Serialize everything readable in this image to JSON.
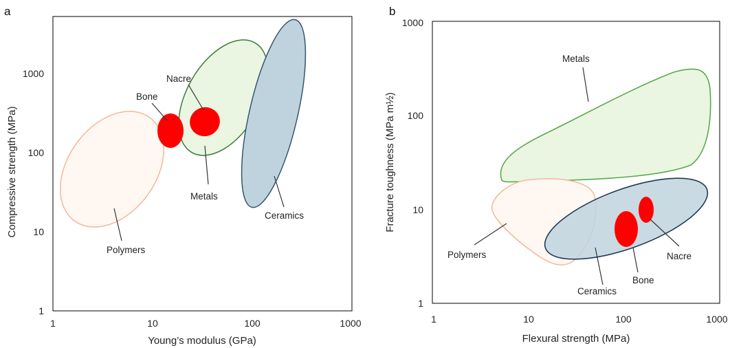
{
  "chart_data": [
    {
      "type": "scatter",
      "panel": "a",
      "xlabel": "Young’s modulus (GPa)",
      "ylabel": "Compressive strength (MPa)",
      "xscale": "log",
      "yscale": "log",
      "xlim": [
        1,
        1000
      ],
      "ylim": [
        1,
        5000
      ],
      "xticks": [
        "1",
        "10",
        "100",
        "1000"
      ],
      "yticks": [
        "1",
        "10",
        "100",
        "1000"
      ],
      "grid": false,
      "regions": [
        {
          "name": "Polymers",
          "x_range": [
            1.2,
            15
          ],
          "y_range": [
            12,
            320
          ],
          "fill": "#fff7f2",
          "stroke": "#f4b79b",
          "tilt": 42
        },
        {
          "name": "Metals",
          "x_range": [
            20,
            150
          ],
          "y_range": [
            38,
            2700
          ],
          "fill": "#eaf6e2",
          "stroke": "#4a8a45",
          "tilt": 48
        },
        {
          "name": "Ceramics",
          "x_range": [
            70,
            650
          ],
          "y_range": [
            20,
            4500
          ],
          "fill": "#bfd3de",
          "stroke": "#3f6174",
          "tilt": 75
        },
        {
          "name": "Bone",
          "x_range": [
            12,
            20
          ],
          "y_range": [
            100,
            300
          ],
          "fill": "#ff0000",
          "stroke": "#ff0000",
          "tilt": 0
        },
        {
          "name": "Nacre",
          "x_range": [
            25,
            45
          ],
          "y_range": [
            150,
            350
          ],
          "fill": "#ff0000",
          "stroke": "#ff0000",
          "tilt": -15
        }
      ]
    },
    {
      "type": "scatter",
      "panel": "b",
      "xlabel": "Flexural strength (MPa)",
      "ylabel": "Fracture toughness (MPa m½)",
      "xscale": "log",
      "yscale": "log",
      "xlim": [
        1,
        1000
      ],
      "ylim": [
        1,
        1000
      ],
      "xticks": [
        "1",
        "10",
        "100",
        "1000"
      ],
      "yticks": [
        "1",
        "10",
        "100",
        "1000"
      ],
      "grid": false,
      "regions": [
        {
          "name": "Metals",
          "x_range": [
            4,
            1000
          ],
          "y_range": [
            22,
            320
          ],
          "fill": "#eaf6e2",
          "stroke": "#5aaa4a"
        },
        {
          "name": "Polymers",
          "x_range": [
            4,
            50
          ],
          "y_range": [
            2.5,
            22
          ],
          "fill": "#fff7f2",
          "stroke": "#f4b79b"
        },
        {
          "name": "Ceramics",
          "x_range": [
            15,
            1000
          ],
          "y_range": [
            3,
            23
          ],
          "fill": "#bfd3de",
          "stroke": "#24405a"
        },
        {
          "name": "Bone",
          "x_range": [
            90,
            140
          ],
          "y_range": [
            3.5,
            9
          ],
          "fill": "#ff0000",
          "stroke": "#ff0000"
        },
        {
          "name": "Nacre",
          "x_range": [
            150,
            210
          ],
          "y_range": [
            7,
            14
          ],
          "fill": "#ff0000",
          "stroke": "#ff0000"
        }
      ]
    }
  ]
}
